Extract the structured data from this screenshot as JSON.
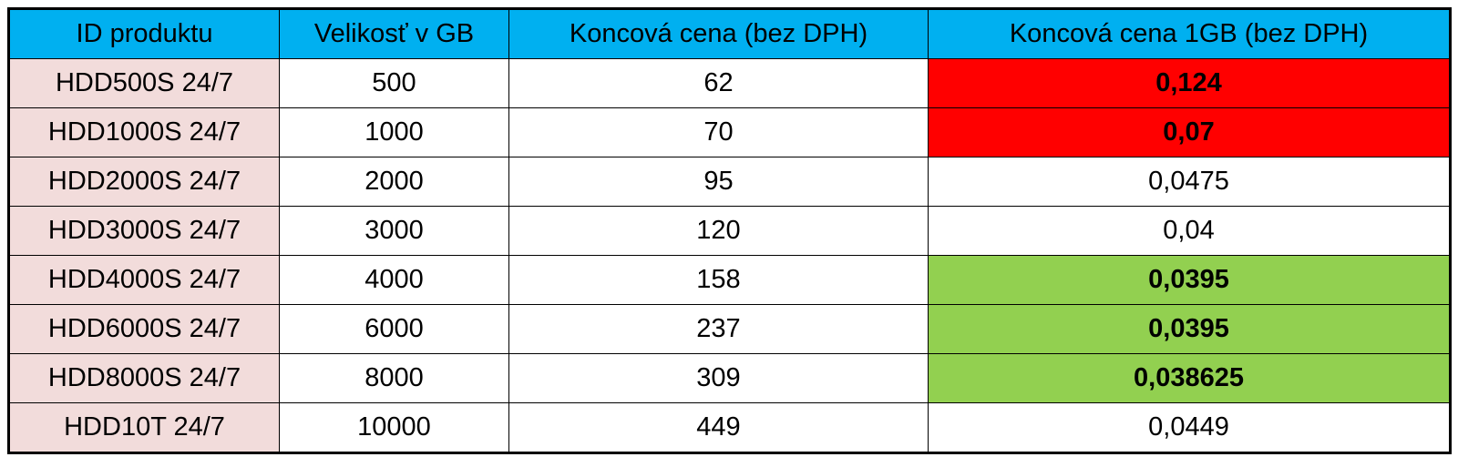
{
  "table": {
    "header": [
      "ID produktu",
      "Velikosť v GB",
      "Koncová cena (bez DPH)",
      "Koncová cena 1GB (bez DPH)"
    ],
    "rows": [
      [
        "HDD500S 24/7",
        "500",
        "62",
        "0,124"
      ],
      [
        "HDD1000S 24/7",
        "1000",
        "70",
        "0,07"
      ],
      [
        "HDD2000S 24/7",
        "2000",
        "95",
        "0,0475"
      ],
      [
        "HDD3000S 24/7",
        "3000",
        "120",
        "0,04"
      ],
      [
        "HDD4000S 24/7",
        "4000",
        "158",
        "0,0395"
      ],
      [
        "HDD6000S 24/7",
        "6000",
        "237",
        "0,0395"
      ],
      [
        "HDD8000S 24/7",
        "8000",
        "309",
        "0,038625"
      ],
      [
        "HDD10T 24/7",
        "10000",
        "449",
        "0,0449"
      ]
    ]
  }
}
